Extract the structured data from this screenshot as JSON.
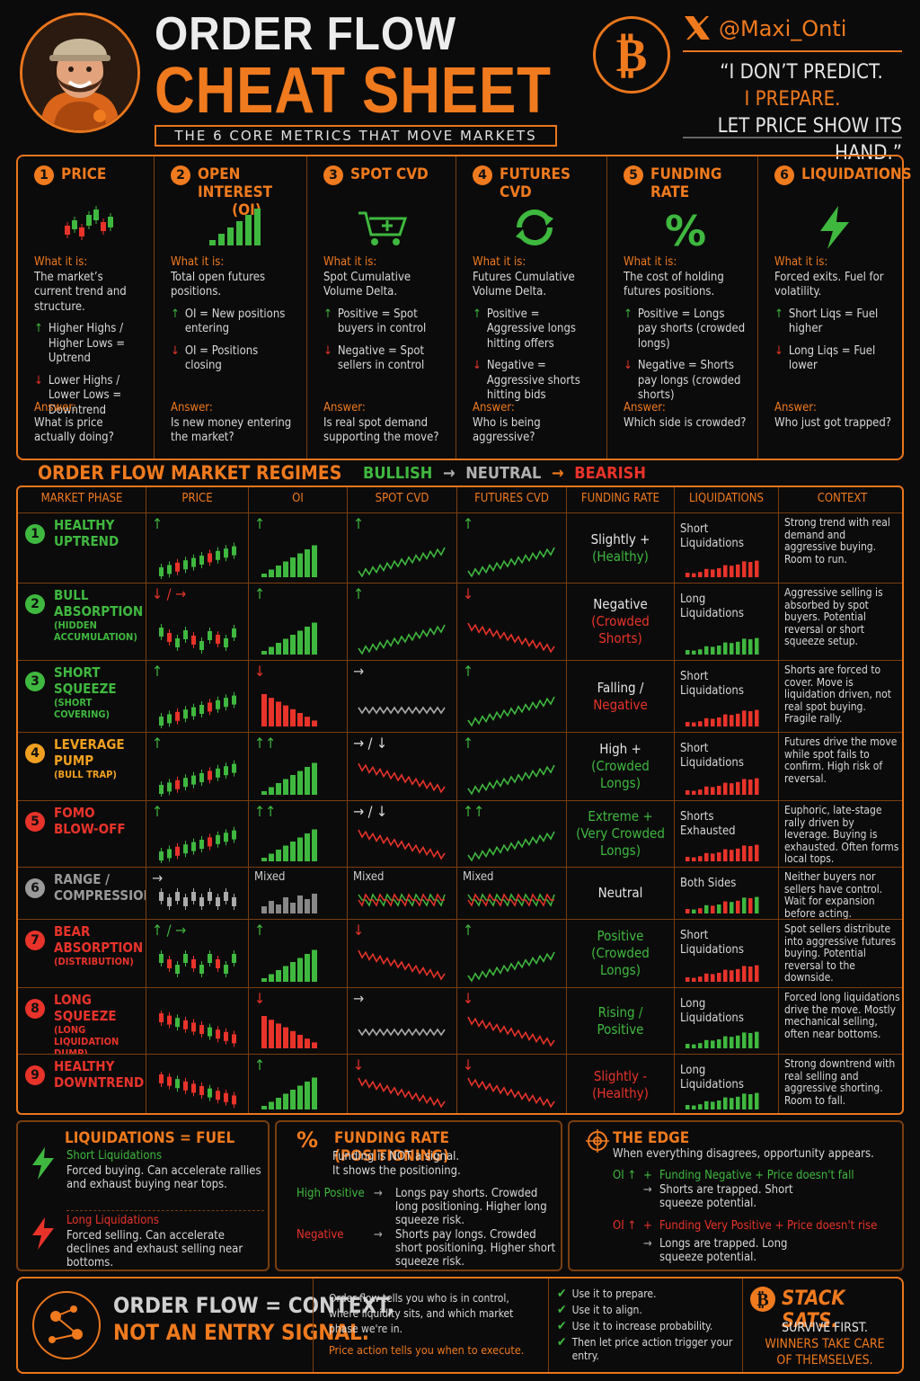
{
  "header": {
    "title_line1": "ORDER FLOW",
    "title_line2": "CHEAT SHEET",
    "subtitle": "THE 6 CORE METRICS THAT MOVE MARKETS",
    "x_handle": "@Maxi_Onti",
    "quote_l1": "“I DON’T PREDICT.",
    "quote_l2": "I PREPARE.",
    "quote_l3": "LET PRICE SHOW ITS HAND.”",
    "icon": "bitcoin-icon"
  },
  "metrics": [
    {
      "n": "1",
      "title": "PRICE",
      "title2": "",
      "what_label": "What it is:",
      "what": "The market’s current trend and structure.",
      "up": "Higher Highs / Higher Lows = Uptrend",
      "down": "Lower Highs / Lower Lows = Downtrend",
      "answer_label": "Answer:",
      "answer": "What is price actually doing?"
    },
    {
      "n": "2",
      "title": "OPEN INTEREST",
      "title2": "(OI)",
      "what_label": "What it is:",
      "what": "Total open futures positions.",
      "up": "OI = New positions entering",
      "down": "OI = Positions closing",
      "answer_label": "Answer:",
      "answer": "Is new money entering the market?"
    },
    {
      "n": "3",
      "title": "SPOT CVD",
      "title2": "",
      "what_label": "What it is:",
      "what": "Spot Cumulative Volume Delta.",
      "up": "Positive = Spot buyers in control",
      "down": "Negative = Spot sellers in control",
      "answer_label": "Answer:",
      "answer": "Is real spot demand supporting the move?"
    },
    {
      "n": "4",
      "title": "FUTURES CVD",
      "title2": "",
      "what_label": "What it is:",
      "what": "Futures Cumulative Volume Delta.",
      "up": "Positive = Aggressive longs hitting offers",
      "down": "Negative = Aggressive shorts hitting bids",
      "answer_label": "Answer:",
      "answer": "Who is being aggressive?"
    },
    {
      "n": "5",
      "title": "FUNDING RATE",
      "title2": "",
      "what_label": "What it is:",
      "what": "The cost of holding futures positions.",
      "up": "Positive = Longs pay shorts (crowded longs)",
      "down": "Negative = Shorts pay longs (crowded shorts)",
      "answer_label": "Answer:",
      "answer": "Which side is crowded?"
    },
    {
      "n": "6",
      "title": "LIQUIDATIONS",
      "title2": "",
      "what_label": "What it is:",
      "what": "Forced exits. Fuel for volatility.",
      "up": "Short Liqs = Fuel higher",
      "down": "Long Liqs = Fuel lower",
      "answer_label": "Answer:",
      "answer": "Who just got trapped?"
    }
  ],
  "regimes": {
    "title": "ORDER FLOW MARKET REGIMES",
    "legend": {
      "bullish": "BULLISH",
      "neutral": "NEUTRAL",
      "bearish": "BEARISH",
      "arrow": "→"
    },
    "headers": [
      "MARKET PHASE",
      "PRICE",
      "OI",
      "SPOT CVD",
      "FUTURES CVD",
      "FUNDING RATE",
      "LIQUIDATIONS",
      "CONTEXT"
    ],
    "rows": [
      {
        "n": "1",
        "phase": "HEALTHY UPTREND",
        "sub": "",
        "color": "#3fb83f",
        "price": "↑",
        "oi": "↑",
        "spot": "↑",
        "fut": "↑",
        "fund1": "Slightly +",
        "fund2": "(Healthy)",
        "liq": "Short Liquidations",
        "ctx": "Strong trend with real demand and aggressive buying. Room to run."
      },
      {
        "n": "2",
        "phase": "BULL ABSORPTION",
        "sub": "(HIDDEN ACCUMULATION)",
        "color": "#3fb83f",
        "price": "↓ / →",
        "oi": "↑",
        "spot": "↑",
        "fut": "↓",
        "fund1": "Negative",
        "fund2": "(Crowded Shorts)",
        "liq": "Long Liquidations",
        "ctx": "Aggressive selling is absorbed by spot buyers. Potential reversal or short squeeze setup."
      },
      {
        "n": "3",
        "phase": "SHORT SQUEEZE",
        "sub": "(SHORT COVERING)",
        "color": "#3fb83f",
        "price": "↑",
        "oi": "↓",
        "spot": "→",
        "fut": "↑",
        "fund1": "Falling /",
        "fund2": "Negative",
        "liq": "Short Liquidations",
        "ctx": "Shorts are forced to cover. Move is liquidation driven, not real spot buying. Fragile rally."
      },
      {
        "n": "4",
        "phase": "LEVERAGE PUMP",
        "sub": "(BULL TRAP)",
        "color": "#f0a020",
        "price": "↑",
        "oi": "↑↑",
        "spot": "→ / ↓",
        "fut": "↑",
        "fund1": "High +",
        "fund2": "(Crowded Longs)",
        "liq": "Short Liquidations",
        "ctx": "Futures drive the move while spot fails to confirm. High risk of reversal."
      },
      {
        "n": "5",
        "phase": "FOMO BLOW-OFF",
        "sub": "",
        "color": "#e8332a",
        "price": "↑",
        "oi": "↑↑",
        "spot": "→ / ↓",
        "fut": "↑↑",
        "fund1": "Extreme +",
        "fund2": "(Very Crowded Longs)",
        "liq": "Shorts Exhausted",
        "ctx": "Euphoric, late-stage rally driven by leverage. Buying is exhausted. Often forms local tops."
      },
      {
        "n": "6",
        "phase": "RANGE / COMPRESSION",
        "sub": "",
        "color": "#9a9a9a",
        "price": "→",
        "oi": "Mixed",
        "spot": "Mixed",
        "fut": "Mixed",
        "fund1": "Neutral",
        "fund2": "",
        "liq": "Both Sides",
        "ctx": "Neither buyers nor sellers have control. Wait for expansion before acting."
      },
      {
        "n": "7",
        "phase": "BEAR ABSORPTION",
        "sub": "(DISTRIBUTION)",
        "color": "#e8332a",
        "price": "↑ / →",
        "oi": "↑",
        "spot": "↓",
        "fut": "↑",
        "fund1": "Positive",
        "fund2": "(Crowded Longs)",
        "liq": "Short Liquidations",
        "ctx": "Spot sellers distribute into aggressive futures buying. Potential reversal to the downside."
      },
      {
        "n": "8",
        "phase": "LONG SQUEEZE",
        "sub": "(LONG LIQUIDATION DUMP)",
        "color": "#e8332a",
        "price": "",
        "oi": "↓",
        "spot": "→",
        "fut": "↓",
        "fund1": "Rising /",
        "fund2": "Positive",
        "liq": "Long Liquidations",
        "ctx": "Forced long liquidations drive the move. Mostly mechanical selling, often near bottoms."
      },
      {
        "n": "9",
        "phase": "HEALTHY DOWNTREND",
        "sub": "",
        "color": "#e8332a",
        "price": "",
        "oi": "↑",
        "spot": "↓",
        "fut": "↓",
        "fund1": "Slightly -",
        "fund2": "(Healthy)",
        "liq": "Long Liquidations",
        "ctx": "Strong downtrend with real selling and aggressive shorting. Room to fall."
      }
    ]
  },
  "liq_panel": {
    "title": "LIQUIDATIONS = FUEL",
    "short_h": "Short Liquidations",
    "short_t": "Forced buying. Can accelerate rallies and exhaust buying near tops.",
    "long_h": "Long Liquidations",
    "long_t": "Forced selling. Can accelerate declines and exhaust selling near bottoms."
  },
  "fund_panel": {
    "title": "FUNDING RATE (POSITIONING)",
    "l1": "Funding is NOT a signal.",
    "l2": "It shows the positioning.",
    "hp": "High Positive",
    "hp_t": "Longs pay shorts. Crowded long positioning. Higher long squeeze risk.",
    "neg": "Negative",
    "neg_t": "Shorts pay longs. Crowded short positioning. Higher short squeeze risk.",
    "arrow": "→"
  },
  "edge_panel": {
    "title": "THE EDGE",
    "sub": "When everything disagrees, opportunity appears.",
    "oi": "OI ↑",
    "plus": "+",
    "c1": "Funding Negative + Price doesn't fall",
    "r1": "Shorts are trapped. Short squeeze potential.",
    "c2": "Funding Very Positive + Price doesn't rise",
    "r2": "Longs are trapped. Long squeeze potential.",
    "arrow": "→"
  },
  "footer": {
    "h1": "ORDER FLOW = CONTEXT,",
    "h2": "NOT AN ENTRY SIGNAL.",
    "mid1": "Order flow tells you who is in control, where liquidity sits, and which market phase we're in.",
    "mid2": "Price action tells you when to execute.",
    "checks": [
      "Use it to prepare.",
      "Use it to align.",
      "Use it to increase probability.",
      "Then let price action trigger your entry."
    ],
    "stack": "STACK SATS.",
    "s1": "SURVIVE FIRST.",
    "s2": "WINNERS TAKE CARE",
    "s3": "OF THEMSELVES."
  }
}
